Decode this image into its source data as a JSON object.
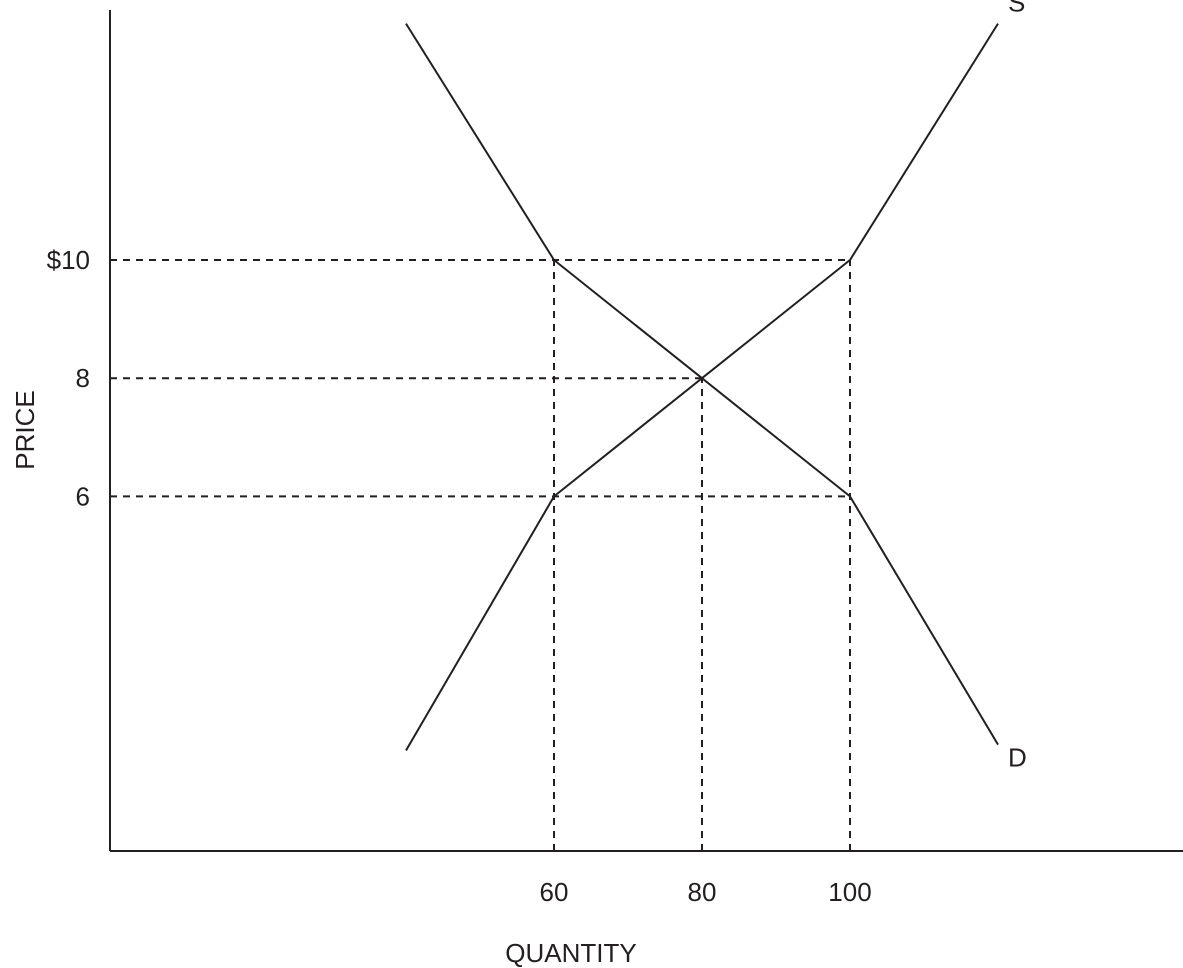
{
  "chart_data": {
    "type": "line",
    "xlabel": "QUANTITY",
    "ylabel": "PRICE",
    "x_ticks": [
      {
        "value": 60,
        "label": "60"
      },
      {
        "value": 80,
        "label": "80"
      },
      {
        "value": 100,
        "label": "100"
      }
    ],
    "y_ticks": [
      {
        "value": 10,
        "label": "$10"
      },
      {
        "value": 8,
        "label": "8"
      },
      {
        "value": 6,
        "label": "6"
      }
    ],
    "series": [
      {
        "name": "S",
        "points": [
          [
            40,
            1.7
          ],
          [
            60,
            6
          ],
          [
            80,
            8
          ],
          [
            100,
            10
          ],
          [
            120,
            14
          ]
        ]
      },
      {
        "name": "D",
        "points": [
          [
            40,
            14
          ],
          [
            60,
            10
          ],
          [
            80,
            8
          ],
          [
            100,
            6
          ],
          [
            120,
            1.8
          ]
        ]
      }
    ],
    "guides": [
      {
        "from": [
          0,
          10
        ],
        "to": [
          100,
          10
        ]
      },
      {
        "from": [
          0,
          8
        ],
        "to": [
          80,
          8
        ]
      },
      {
        "from": [
          0,
          6
        ],
        "to": [
          100,
          6
        ]
      },
      {
        "from": [
          60,
          0
        ],
        "to": [
          60,
          10
        ]
      },
      {
        "from": [
          80,
          0
        ],
        "to": [
          80,
          8
        ]
      },
      {
        "from": [
          100,
          0
        ],
        "to": [
          100,
          10
        ]
      }
    ],
    "grid": false,
    "legend": "none",
    "colors": {
      "ink": "#231f20",
      "background": "#ffffff"
    }
  }
}
